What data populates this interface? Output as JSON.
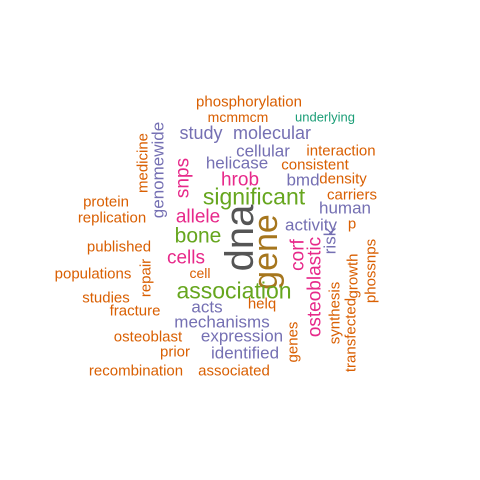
{
  "palette": {
    "gray": "#555555",
    "teal": "#1b9e77",
    "orange": "#d95f02",
    "purple": "#7570b3",
    "magenta": "#e7298a",
    "green": "#66a61e",
    "gold": "#a6761d"
  },
  "words": [
    {
      "text": "dna",
      "color": "gray",
      "rotated": true
    },
    {
      "text": "gene",
      "color": "gold",
      "rotated": true
    },
    {
      "text": "significant",
      "color": "green",
      "rotated": false
    },
    {
      "text": "association",
      "color": "green",
      "rotated": false
    },
    {
      "text": "bone",
      "color": "green",
      "rotated": false
    },
    {
      "text": "allele",
      "color": "magenta",
      "rotated": false
    },
    {
      "text": "cells",
      "color": "magenta",
      "rotated": false
    },
    {
      "text": "hrob",
      "color": "magenta",
      "rotated": false
    },
    {
      "text": "snps",
      "color": "magenta",
      "rotated": true
    },
    {
      "text": "corf",
      "color": "magenta",
      "rotated": true
    },
    {
      "text": "osteoblastic",
      "color": "magenta",
      "rotated": true
    },
    {
      "text": "molecular",
      "color": "purple",
      "rotated": false
    },
    {
      "text": "study",
      "color": "purple",
      "rotated": false
    },
    {
      "text": "cellular",
      "color": "purple",
      "rotated": false
    },
    {
      "text": "helicase",
      "color": "purple",
      "rotated": false
    },
    {
      "text": "bmd",
      "color": "purple",
      "rotated": false
    },
    {
      "text": "human",
      "color": "purple",
      "rotated": false
    },
    {
      "text": "activity",
      "color": "purple",
      "rotated": false
    },
    {
      "text": "risk",
      "color": "purple",
      "rotated": true
    },
    {
      "text": "acts",
      "color": "purple",
      "rotated": false
    },
    {
      "text": "mechanisms",
      "color": "purple",
      "rotated": false
    },
    {
      "text": "expression",
      "color": "purple",
      "rotated": false
    },
    {
      "text": "identified",
      "color": "purple",
      "rotated": false
    },
    {
      "text": "genomewide",
      "color": "purple",
      "rotated": true
    },
    {
      "text": "phosphorylation",
      "color": "orange",
      "rotated": false
    },
    {
      "text": "mcmmcm",
      "color": "orange",
      "rotated": false
    },
    {
      "text": "underlying",
      "color": "teal",
      "rotated": false
    },
    {
      "text": "interaction",
      "color": "orange",
      "rotated": false
    },
    {
      "text": "consistent",
      "color": "orange",
      "rotated": false
    },
    {
      "text": "density",
      "color": "orange",
      "rotated": false
    },
    {
      "text": "carriers",
      "color": "orange",
      "rotated": false
    },
    {
      "text": "p",
      "color": "orange",
      "rotated": false
    },
    {
      "text": "medicine",
      "color": "orange",
      "rotated": true
    },
    {
      "text": "protein",
      "color": "orange",
      "rotated": false
    },
    {
      "text": "replication",
      "color": "orange",
      "rotated": false
    },
    {
      "text": "published",
      "color": "orange",
      "rotated": false
    },
    {
      "text": "populations",
      "color": "orange",
      "rotated": false
    },
    {
      "text": "repair",
      "color": "orange",
      "rotated": true
    },
    {
      "text": "cell",
      "color": "orange",
      "rotated": false
    },
    {
      "text": "studies",
      "color": "orange",
      "rotated": false
    },
    {
      "text": "fracture",
      "color": "orange",
      "rotated": false
    },
    {
      "text": "helq",
      "color": "orange",
      "rotated": false
    },
    {
      "text": "osteoblast",
      "color": "orange",
      "rotated": false
    },
    {
      "text": "prior",
      "color": "orange",
      "rotated": false
    },
    {
      "text": "genes",
      "color": "orange",
      "rotated": true
    },
    {
      "text": "synthesis",
      "color": "orange",
      "rotated": true
    },
    {
      "text": "transfected",
      "color": "orange",
      "rotated": true
    },
    {
      "text": "growth",
      "color": "orange",
      "rotated": true
    },
    {
      "text": "phossnps",
      "color": "orange",
      "rotated": true
    },
    {
      "text": "recombination",
      "color": "orange",
      "rotated": false
    },
    {
      "text": "associated",
      "color": "orange",
      "rotated": false
    }
  ]
}
